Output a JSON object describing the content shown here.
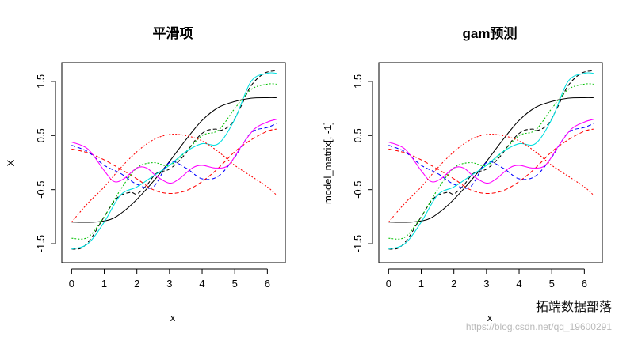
{
  "chart_data": [
    {
      "type": "line",
      "title": "平滑项",
      "xlabel": "x",
      "ylabel": "X",
      "xlim": [
        -0.3,
        6.55
      ],
      "ylim": [
        -1.85,
        1.85
      ],
      "x_ticks": [
        0,
        1,
        2,
        3,
        4,
        5,
        6
      ],
      "y_ticks": [
        -1.5,
        -0.5,
        0.5,
        1.5
      ],
      "x_tick_labels": [
        "0",
        "1",
        "2",
        "3",
        "4",
        "5",
        "6"
      ],
      "y_tick_labels": [
        "-1.5",
        "-0.5",
        "0.5",
        "1.5"
      ],
      "grid": false,
      "series": [
        {
          "color": "#000000",
          "dash": "solid",
          "x": [
            0,
            0.7,
            1.2,
            1.6,
            2.0,
            2.5,
            3.0,
            3.5,
            4.0,
            4.5,
            5.0,
            5.5,
            6.0,
            6.28
          ],
          "values": [
            -1.1,
            -1.1,
            -1.05,
            -0.9,
            -0.68,
            -0.35,
            0.02,
            0.42,
            0.78,
            1.02,
            1.13,
            1.19,
            1.2,
            1.2
          ]
        },
        {
          "color": "#000000",
          "dash": "dashed",
          "x": [
            0,
            0.3,
            0.6,
            1.0,
            1.4,
            1.8,
            2.0,
            2.3,
            2.6,
            3.0,
            3.4,
            3.8,
            4.1,
            4.4,
            4.6,
            4.9,
            5.2,
            5.5,
            5.9,
            6.28
          ],
          "values": [
            -1.6,
            -1.58,
            -1.4,
            -1.0,
            -0.65,
            -0.55,
            -0.58,
            -0.42,
            -0.2,
            -0.12,
            0.1,
            0.42,
            0.58,
            0.62,
            0.6,
            0.72,
            1.05,
            1.42,
            1.65,
            1.7
          ]
        },
        {
          "color": "#ff0000",
          "dash": "dashed",
          "x": [
            0,
            0.5,
            1.0,
            1.5,
            2.0,
            2.5,
            3.0,
            3.5,
            4.0,
            4.5,
            5.0,
            5.5,
            6.0,
            6.28
          ],
          "values": [
            0.25,
            0.18,
            0.05,
            -0.12,
            -0.3,
            -0.5,
            -0.57,
            -0.52,
            -0.35,
            -0.1,
            0.2,
            0.42,
            0.58,
            0.62
          ]
        },
        {
          "color": "#00c000",
          "dash": "dotted",
          "x": [
            0,
            0.5,
            1.0,
            1.5,
            2.0,
            2.5,
            3.0,
            3.5,
            4.0,
            4.5,
            5.0,
            5.5,
            6.0,
            6.28
          ],
          "values": [
            -1.4,
            -1.38,
            -1.0,
            -0.5,
            -0.1,
            0.0,
            -0.05,
            0.2,
            0.5,
            0.6,
            1.0,
            1.35,
            1.45,
            1.45
          ]
        },
        {
          "color": "#0000ff",
          "dash": "dashed",
          "x": [
            0,
            0.5,
            1.0,
            1.5,
            2.0,
            2.5,
            3.0,
            3.5,
            4.0,
            4.5,
            5.0,
            5.5,
            6.0,
            6.28
          ],
          "values": [
            0.32,
            0.2,
            -0.05,
            -0.2,
            -0.4,
            -0.45,
            0.0,
            -0.1,
            -0.3,
            -0.25,
            0.1,
            0.55,
            0.65,
            0.72
          ]
        },
        {
          "color": "#00e0e0",
          "dash": "solid",
          "x": [
            0,
            0.5,
            1.0,
            1.5,
            2.0,
            2.5,
            3.0,
            3.5,
            4.0,
            4.5,
            5.0,
            5.5,
            6.0,
            6.28
          ],
          "values": [
            -1.6,
            -1.5,
            -1.1,
            -0.6,
            -0.45,
            -0.25,
            -0.05,
            0.2,
            0.35,
            0.35,
            0.8,
            1.5,
            1.65,
            1.65
          ]
        },
        {
          "color": "#ff00ff",
          "dash": "solid",
          "x": [
            0,
            0.5,
            1.0,
            1.3,
            1.6,
            2.0,
            2.3,
            2.6,
            3.0,
            3.3,
            3.7,
            4.0,
            4.4,
            4.8,
            5.2,
            5.6,
            6.0,
            6.28
          ],
          "values": [
            0.38,
            0.25,
            -0.15,
            -0.35,
            -0.3,
            -0.1,
            -0.1,
            -0.25,
            -0.38,
            -0.3,
            -0.1,
            -0.05,
            -0.1,
            -0.05,
            0.3,
            0.62,
            0.75,
            0.8
          ]
        },
        {
          "color": "#ff0000",
          "dash": "dotted",
          "x": [
            0,
            0.5,
            1.0,
            1.5,
            2.0,
            2.5,
            3.0,
            3.5,
            4.0,
            4.5,
            5.0,
            5.5,
            6.0,
            6.28
          ],
          "values": [
            -1.1,
            -0.75,
            -0.45,
            -0.1,
            0.2,
            0.42,
            0.52,
            0.5,
            0.4,
            0.2,
            -0.05,
            -0.25,
            -0.45,
            -0.6
          ]
        }
      ]
    },
    {
      "type": "line",
      "title": "gam预测",
      "xlabel": "x",
      "ylabel": "model_matrix[, -1]",
      "xlim": [
        -0.3,
        6.55
      ],
      "ylim": [
        -1.85,
        1.85
      ],
      "x_ticks": [
        0,
        1,
        2,
        3,
        4,
        5,
        6
      ],
      "y_ticks": [
        -1.5,
        -0.5,
        0.5,
        1.5
      ],
      "x_tick_labels": [
        "0",
        "1",
        "2",
        "3",
        "4",
        "5",
        "6"
      ],
      "y_tick_labels": [
        "-1.5",
        "-0.5",
        "0.5",
        "1.5"
      ],
      "grid": false,
      "series": [
        {
          "color": "#000000",
          "dash": "solid",
          "x": [
            0,
            0.7,
            1.2,
            1.6,
            2.0,
            2.5,
            3.0,
            3.5,
            4.0,
            4.5,
            5.0,
            5.5,
            6.0,
            6.28
          ],
          "values": [
            -1.1,
            -1.1,
            -1.05,
            -0.9,
            -0.68,
            -0.35,
            0.02,
            0.42,
            0.78,
            1.02,
            1.13,
            1.19,
            1.2,
            1.2
          ]
        },
        {
          "color": "#000000",
          "dash": "dashed",
          "x": [
            0,
            0.3,
            0.6,
            1.0,
            1.4,
            1.8,
            2.0,
            2.3,
            2.6,
            3.0,
            3.4,
            3.8,
            4.1,
            4.4,
            4.6,
            4.9,
            5.2,
            5.5,
            5.9,
            6.28
          ],
          "values": [
            -1.6,
            -1.58,
            -1.4,
            -1.0,
            -0.65,
            -0.55,
            -0.58,
            -0.42,
            -0.2,
            -0.12,
            0.1,
            0.42,
            0.58,
            0.62,
            0.6,
            0.72,
            1.05,
            1.42,
            1.65,
            1.7
          ]
        },
        {
          "color": "#ff0000",
          "dash": "dashed",
          "x": [
            0,
            0.5,
            1.0,
            1.5,
            2.0,
            2.5,
            3.0,
            3.5,
            4.0,
            4.5,
            5.0,
            5.5,
            6.0,
            6.28
          ],
          "values": [
            0.25,
            0.18,
            0.05,
            -0.12,
            -0.3,
            -0.5,
            -0.57,
            -0.52,
            -0.35,
            -0.1,
            0.2,
            0.42,
            0.58,
            0.62
          ]
        },
        {
          "color": "#00c000",
          "dash": "dotted",
          "x": [
            0,
            0.5,
            1.0,
            1.5,
            2.0,
            2.5,
            3.0,
            3.5,
            4.0,
            4.5,
            5.0,
            5.5,
            6.0,
            6.28
          ],
          "values": [
            -1.4,
            -1.38,
            -1.0,
            -0.5,
            -0.1,
            0.0,
            -0.05,
            0.2,
            0.5,
            0.6,
            1.0,
            1.35,
            1.45,
            1.45
          ]
        },
        {
          "color": "#0000ff",
          "dash": "dashed",
          "x": [
            0,
            0.5,
            1.0,
            1.5,
            2.0,
            2.5,
            3.0,
            3.5,
            4.0,
            4.5,
            5.0,
            5.5,
            6.0,
            6.28
          ],
          "values": [
            0.32,
            0.2,
            -0.05,
            -0.2,
            -0.4,
            -0.45,
            0.0,
            -0.1,
            -0.3,
            -0.25,
            0.1,
            0.55,
            0.65,
            0.72
          ]
        },
        {
          "color": "#00e0e0",
          "dash": "solid",
          "x": [
            0,
            0.5,
            1.0,
            1.5,
            2.0,
            2.5,
            3.0,
            3.5,
            4.0,
            4.5,
            5.0,
            5.5,
            6.0,
            6.28
          ],
          "values": [
            -1.6,
            -1.5,
            -1.1,
            -0.6,
            -0.45,
            -0.25,
            -0.05,
            0.2,
            0.35,
            0.35,
            0.8,
            1.5,
            1.65,
            1.65
          ]
        },
        {
          "color": "#ff00ff",
          "dash": "solid",
          "x": [
            0,
            0.5,
            1.0,
            1.3,
            1.6,
            2.0,
            2.3,
            2.6,
            3.0,
            3.3,
            3.7,
            4.0,
            4.4,
            4.8,
            5.2,
            5.6,
            6.0,
            6.28
          ],
          "values": [
            0.38,
            0.25,
            -0.15,
            -0.35,
            -0.3,
            -0.1,
            -0.1,
            -0.25,
            -0.38,
            -0.3,
            -0.1,
            -0.05,
            -0.1,
            -0.05,
            0.3,
            0.62,
            0.75,
            0.8
          ]
        },
        {
          "color": "#ff0000",
          "dash": "dotted",
          "x": [
            0,
            0.5,
            1.0,
            1.5,
            2.0,
            2.5,
            3.0,
            3.5,
            4.0,
            4.5,
            5.0,
            5.5,
            6.0,
            6.28
          ],
          "values": [
            -1.1,
            -0.75,
            -0.45,
            -0.1,
            0.2,
            0.42,
            0.52,
            0.5,
            0.4,
            0.2,
            -0.05,
            -0.25,
            -0.45,
            -0.6
          ]
        }
      ]
    }
  ],
  "watermark": {
    "brand": "拓端数据部落",
    "url": "https://blog.csdn.net/qq_19600291"
  }
}
